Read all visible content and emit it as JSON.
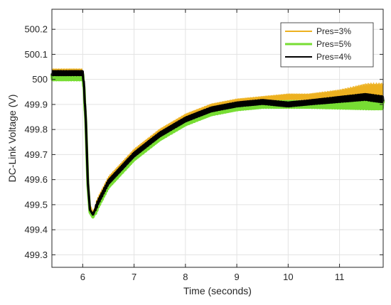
{
  "chart_data": {
    "type": "line",
    "title": "",
    "xlabel": "Time (seconds)",
    "ylabel": "DC-Link Voltage (V)",
    "xlim": [
      5.4,
      11.85
    ],
    "ylim": [
      499.25,
      500.28
    ],
    "xticks": [
      6,
      7,
      8,
      9,
      10,
      11
    ],
    "yticks": [
      499.3,
      499.4,
      499.5,
      499.6,
      499.7,
      499.8,
      499.9,
      500,
      500.1,
      500.2
    ],
    "xtick_labels": [
      "6",
      "7",
      "8",
      "9",
      "10",
      "11"
    ],
    "ytick_labels": [
      "499.3",
      "499.4",
      "499.5",
      "499.6",
      "499.7",
      "499.8",
      "499.9",
      "500",
      "500.1",
      "500.2"
    ],
    "grid": true,
    "legend_position": "top-right",
    "series": [
      {
        "name": "Pres=3%",
        "color": "#EDB120",
        "x": [
          5.4,
          6.0,
          6.02,
          6.06,
          6.1,
          6.14,
          6.2,
          6.3,
          6.5,
          7.0,
          7.5,
          8.0,
          8.5,
          9.0,
          9.5,
          10.0,
          10.5,
          11.0,
          11.5,
          11.85
        ],
        "y": [
          500.03,
          500.03,
          500.0,
          499.85,
          499.6,
          499.5,
          499.47,
          499.52,
          499.6,
          499.71,
          499.79,
          499.85,
          499.89,
          499.91,
          499.92,
          499.93,
          499.93,
          499.93,
          499.94,
          499.94
        ]
      },
      {
        "name": "Pres=5%",
        "color": "#77DD33",
        "x": [
          5.4,
          6.0,
          6.02,
          6.06,
          6.1,
          6.14,
          6.2,
          6.3,
          6.5,
          7.0,
          7.5,
          8.0,
          8.5,
          9.0,
          9.5,
          10.0,
          10.5,
          11.0,
          11.5,
          11.85
        ],
        "y": [
          500.01,
          500.01,
          499.98,
          499.83,
          499.58,
          499.47,
          499.45,
          499.5,
          499.58,
          499.69,
          499.77,
          499.83,
          499.87,
          499.89,
          499.9,
          499.9,
          499.9,
          499.9,
          499.9,
          499.9
        ]
      },
      {
        "name": "Pres=4%",
        "color": "#000000",
        "x": [
          5.4,
          6.0,
          6.02,
          6.06,
          6.1,
          6.14,
          6.2,
          6.3,
          6.5,
          7.0,
          7.5,
          8.0,
          8.5,
          9.0,
          9.5,
          10.0,
          10.5,
          11.0,
          11.5,
          11.85
        ],
        "y": [
          500.025,
          500.025,
          499.99,
          499.84,
          499.59,
          499.48,
          499.46,
          499.51,
          499.59,
          499.7,
          499.78,
          499.84,
          499.88,
          499.9,
          499.91,
          499.9,
          499.91,
          499.92,
          499.93,
          499.92
        ]
      }
    ]
  }
}
